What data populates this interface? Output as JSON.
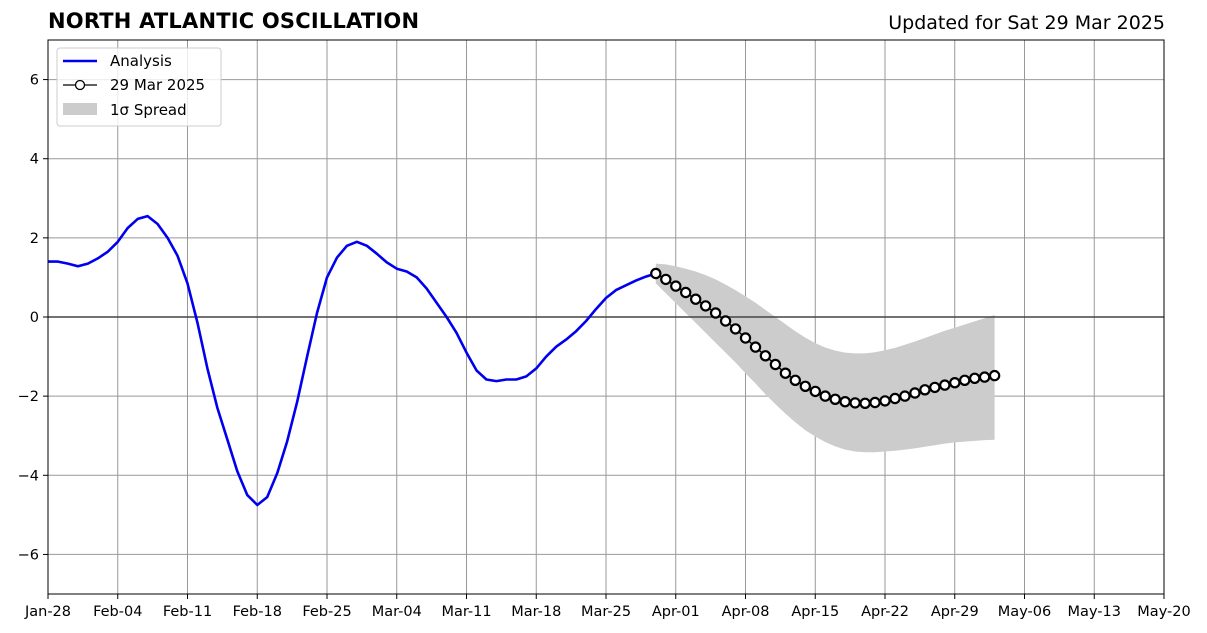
{
  "chart_data": {
    "type": "line",
    "title": "NORTH ATLANTIC OSCILLATION",
    "subtitle": "Updated for Sat 29 Mar 2025",
    "xlabel": "",
    "ylabel": "",
    "xlim": [
      "2025-01-28",
      "2025-05-20"
    ],
    "ylim": [
      -7,
      7
    ],
    "x_ticks": [
      "Jan-28",
      "Feb-04",
      "Feb-11",
      "Feb-18",
      "Feb-25",
      "Mar-04",
      "Mar-11",
      "Mar-18",
      "Mar-25",
      "Apr-01",
      "Apr-08",
      "Apr-15",
      "Apr-22",
      "Apr-29",
      "May-06",
      "May-13",
      "May-20"
    ],
    "y_ticks": [
      -6,
      -4,
      -2,
      0,
      2,
      4,
      6
    ],
    "grid": true,
    "legend": {
      "placement": "top-left",
      "entries": [
        "Analysis",
        "29 Mar 2025",
        "1σ Spread"
      ]
    },
    "colors": {
      "analysis": "#0000ee",
      "forecast": "#000000",
      "spread": "#cccccc",
      "grid": "#999999"
    },
    "series": [
      {
        "name": "Analysis",
        "x_start": "2025-01-28",
        "x_step_days": 1,
        "values": [
          1.4,
          1.4,
          1.35,
          1.28,
          1.35,
          1.48,
          1.65,
          1.9,
          2.25,
          2.48,
          2.55,
          2.35,
          2.0,
          1.55,
          0.85,
          -0.15,
          -1.3,
          -2.3,
          -3.1,
          -3.9,
          -4.5,
          -4.75,
          -4.55,
          -3.95,
          -3.15,
          -2.15,
          -1.0,
          0.1,
          1.0,
          1.5,
          1.8,
          1.9,
          1.8,
          1.6,
          1.38,
          1.22,
          1.15,
          1.0,
          0.72,
          0.36,
          0.0,
          -0.4,
          -0.9,
          -1.35,
          -1.58,
          -1.62,
          -1.58,
          -1.58,
          -1.5,
          -1.3,
          -1.0,
          -0.75,
          -0.57,
          -0.36,
          -0.1,
          0.2,
          0.48,
          0.68,
          0.8,
          0.92,
          1.02,
          1.1
        ]
      },
      {
        "name": "29 Mar 2025",
        "x_start": "2025-03-30",
        "x_step_days": 1,
        "values": [
          1.1,
          0.95,
          0.78,
          0.62,
          0.45,
          0.28,
          0.1,
          -0.1,
          -0.3,
          -0.53,
          -0.76,
          -0.98,
          -1.2,
          -1.42,
          -1.6,
          -1.75,
          -1.88,
          -2.0,
          -2.08,
          -2.14,
          -2.17,
          -2.18,
          -2.16,
          -2.12,
          -2.06,
          -2.0,
          -1.92,
          -1.84,
          -1.78,
          -1.72,
          -1.66,
          -1.6,
          -1.55,
          -1.52,
          -1.48
        ]
      },
      {
        "name": "1σ Spread",
        "x_start": "2025-03-30",
        "x_step_days": 1,
        "upper": [
          1.35,
          1.33,
          1.28,
          1.22,
          1.15,
          1.06,
          0.95,
          0.82,
          0.68,
          0.52,
          0.36,
          0.18,
          0.0,
          -0.18,
          -0.36,
          -0.52,
          -0.66,
          -0.77,
          -0.85,
          -0.9,
          -0.92,
          -0.92,
          -0.89,
          -0.84,
          -0.78,
          -0.7,
          -0.62,
          -0.53,
          -0.44,
          -0.35,
          -0.27,
          -0.19,
          -0.11,
          -0.03,
          0.05
        ],
        "lower": [
          0.85,
          0.6,
          0.35,
          0.1,
          -0.15,
          -0.4,
          -0.65,
          -0.9,
          -1.15,
          -1.42,
          -1.68,
          -1.95,
          -2.2,
          -2.44,
          -2.66,
          -2.86,
          -3.02,
          -3.16,
          -3.27,
          -3.35,
          -3.4,
          -3.42,
          -3.42,
          -3.4,
          -3.38,
          -3.35,
          -3.32,
          -3.28,
          -3.24,
          -3.2,
          -3.17,
          -3.15,
          -3.13,
          -3.11,
          -3.1
        ]
      }
    ]
  }
}
